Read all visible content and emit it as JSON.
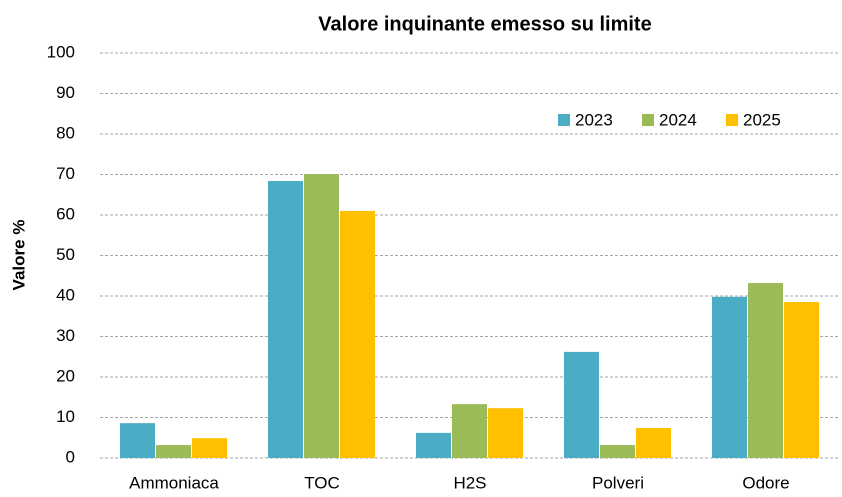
{
  "chart_data": {
    "type": "bar",
    "title": "Valore inquinante emesso su limite",
    "ylabel": "Valore %",
    "categories": [
      "Ammoniaca",
      "TOC",
      "H2S",
      "Polveri",
      "Odore"
    ],
    "series": [
      {
        "name": "2023",
        "color": "#4bacc6",
        "values": [
          8.6,
          68.4,
          6.2,
          26.2,
          39.8
        ]
      },
      {
        "name": "2024",
        "color": "#9bbb59",
        "values": [
          3.2,
          70.1,
          13.3,
          3.2,
          43.2
        ]
      },
      {
        "name": "2025",
        "color": "#ffc000",
        "values": [
          4.9,
          61,
          12.3,
          7.4,
          38.5
        ]
      }
    ],
    "ylim": [
      0,
      100
    ],
    "yticks": [
      0,
      10,
      20,
      30,
      40,
      50,
      60,
      70,
      80,
      90,
      100
    ],
    "grid": true,
    "legend": "upper right"
  }
}
